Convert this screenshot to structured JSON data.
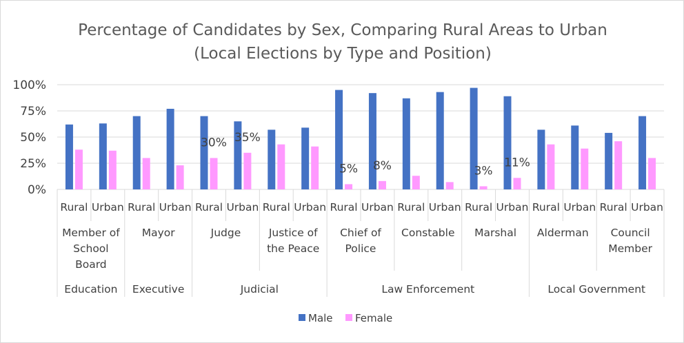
{
  "chart_data": {
    "type": "bar",
    "title": "Percentage of Candidates by Sex, Comparing Rural Areas to Urban",
    "subtitle": "(Local Elections by Type and Position)",
    "y_ticks": [
      "100%",
      "75%",
      "50%",
      "25%",
      "0%"
    ],
    "ylim": [
      0,
      100
    ],
    "grid": true,
    "legend_position": "bottom",
    "colors": {
      "Male": "#4472c4",
      "Female": "#ff99ff"
    },
    "types": [
      {
        "label": "Education",
        "positions": 1
      },
      {
        "label": "Executive",
        "positions": 1
      },
      {
        "label": "Judicial",
        "positions": 2
      },
      {
        "label": "Law Enforcement",
        "positions": 3
      },
      {
        "label": "Local Government",
        "positions": 2
      }
    ],
    "positions": [
      {
        "lines": [
          "Member of",
          "School",
          "Board"
        ]
      },
      {
        "lines": [
          "Mayor"
        ]
      },
      {
        "lines": [
          "Judge"
        ]
      },
      {
        "lines": [
          "Justice of",
          "the Peace"
        ]
      },
      {
        "lines": [
          "Chief of",
          "Police"
        ]
      },
      {
        "lines": [
          "Constable"
        ]
      },
      {
        "lines": [
          "Marshal"
        ]
      },
      {
        "lines": [
          "Alderman"
        ]
      },
      {
        "lines": [
          "Council",
          "Member"
        ]
      }
    ],
    "categories": [
      "Rural",
      "Urban",
      "Rural",
      "Urban",
      "Rural",
      "Urban",
      "Rural",
      "Urban",
      "Rural",
      "Urban",
      "Rural",
      "Urban",
      "Rural",
      "Urban",
      "Rural",
      "Urban",
      "Rural",
      "Urban"
    ],
    "series": [
      {
        "name": "Male",
        "values": [
          62,
          63,
          70,
          77,
          70,
          65,
          57,
          59,
          95,
          92,
          87,
          93,
          97,
          89,
          57,
          61,
          54,
          70
        ]
      },
      {
        "name": "Female",
        "values": [
          38,
          37,
          30,
          23,
          30,
          35,
          43,
          41,
          5,
          8,
          13,
          7,
          3,
          11,
          43,
          39,
          46,
          30
        ]
      }
    ],
    "data_labels": [
      {
        "series": "Female",
        "index": 4,
        "text": "30%"
      },
      {
        "series": "Female",
        "index": 5,
        "text": "35%"
      },
      {
        "series": "Female",
        "index": 8,
        "text": "5%"
      },
      {
        "series": "Female",
        "index": 9,
        "text": "8%"
      },
      {
        "series": "Female",
        "index": 12,
        "text": "3%"
      },
      {
        "series": "Female",
        "index": 13,
        "text": "11%"
      }
    ]
  }
}
